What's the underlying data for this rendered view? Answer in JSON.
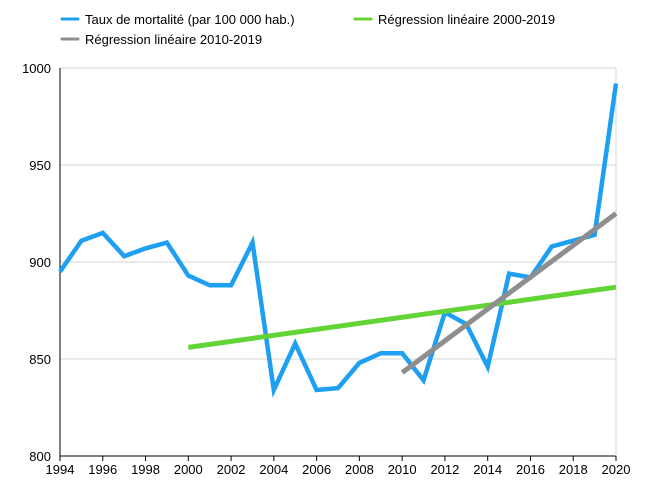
{
  "chart_data": {
    "type": "line",
    "title": "",
    "xlabel": "",
    "ylabel": "",
    "xlim": [
      1994,
      2020
    ],
    "ylim": [
      800,
      1000
    ],
    "grid": true,
    "legend": "top",
    "x_ticks": [
      "1994",
      "1996",
      "1998",
      "2000",
      "2002",
      "2004",
      "2006",
      "2008",
      "2010",
      "2012",
      "2014",
      "2016",
      "2018",
      "2020"
    ],
    "y_ticks": [
      "800",
      "850",
      "900",
      "950",
      "1000"
    ],
    "series": [
      {
        "name": "Taux de mortalité (par 100 000 hab.)",
        "color": "#1e9ff2",
        "x": [
          1994,
          1995,
          1996,
          1997,
          1998,
          1999,
          2000,
          2001,
          2002,
          2003,
          2004,
          2005,
          2006,
          2007,
          2008,
          2009,
          2010,
          2011,
          2012,
          2013,
          2014,
          2015,
          2016,
          2017,
          2018,
          2019,
          2020
        ],
        "y": [
          895,
          911,
          915,
          903,
          907,
          910,
          893,
          888,
          888,
          910,
          834,
          858,
          834,
          835,
          848,
          853,
          853,
          839,
          874,
          868,
          846,
          894,
          892,
          908,
          911,
          914,
          992
        ]
      },
      {
        "name": "Régression linéaire 2000-2019",
        "color": "#62d436",
        "x": [
          2000,
          2020
        ],
        "y": [
          856,
          887
        ]
      },
      {
        "name": "Régression linéaire 2010-2019",
        "color": "#8e8e8e",
        "x": [
          2010,
          2020
        ],
        "y": [
          843,
          925
        ]
      }
    ]
  }
}
